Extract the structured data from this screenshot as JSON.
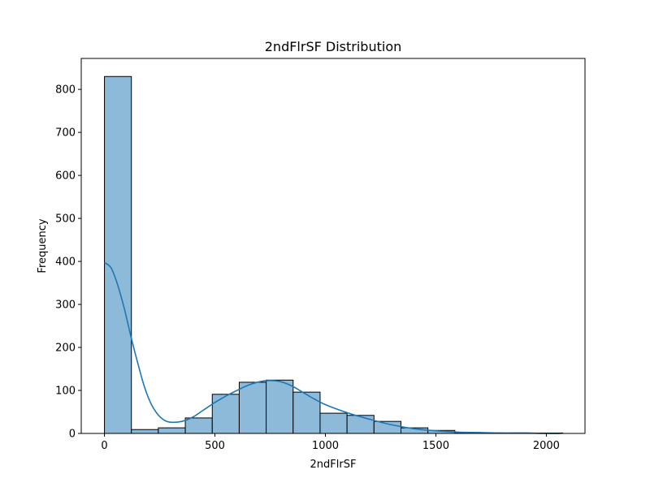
{
  "chart_data": {
    "type": "bar",
    "title": "2ndFlrSF Distribution",
    "xlabel": "2ndFlrSF",
    "ylabel": "Frequency",
    "xlim": [
      -105,
      2175
    ],
    "ylim": [
      0,
      872
    ],
    "x_ticks": [
      0,
      500,
      1000,
      1500,
      2000
    ],
    "y_ticks": [
      0,
      100,
      200,
      300,
      400,
      500,
      600,
      700,
      800
    ],
    "bins": [
      {
        "start": 0,
        "end": 122,
        "count": 830
      },
      {
        "start": 122,
        "end": 244,
        "count": 9
      },
      {
        "start": 244,
        "end": 366,
        "count": 13
      },
      {
        "start": 366,
        "end": 488,
        "count": 36
      },
      {
        "start": 488,
        "end": 610,
        "count": 91
      },
      {
        "start": 610,
        "end": 732,
        "count": 119
      },
      {
        "start": 732,
        "end": 854,
        "count": 124
      },
      {
        "start": 854,
        "end": 976,
        "count": 96
      },
      {
        "start": 976,
        "end": 1098,
        "count": 47
      },
      {
        "start": 1098,
        "end": 1220,
        "count": 42
      },
      {
        "start": 1220,
        "end": 1342,
        "count": 28
      },
      {
        "start": 1342,
        "end": 1464,
        "count": 13
      },
      {
        "start": 1464,
        "end": 1586,
        "count": 7
      },
      {
        "start": 1586,
        "end": 1708,
        "count": 2
      },
      {
        "start": 1708,
        "end": 1830,
        "count": 1
      },
      {
        "start": 1830,
        "end": 1952,
        "count": 1
      },
      {
        "start": 1952,
        "end": 2074,
        "count": 1
      }
    ],
    "kde": {
      "x": [
        0,
        30,
        60,
        90,
        120,
        150,
        180,
        210,
        240,
        270,
        300,
        350,
        400,
        450,
        500,
        550,
        600,
        650,
        700,
        750,
        800,
        850,
        900,
        950,
        1000,
        1100,
        1200,
        1300,
        1400,
        1500,
        1600,
        1700,
        1800,
        1900,
        2000,
        2065
      ],
      "y": [
        397,
        385,
        345,
        290,
        225,
        165,
        110,
        70,
        45,
        31,
        26,
        28,
        38,
        55,
        72,
        87,
        100,
        112,
        120,
        123,
        120,
        110,
        95,
        80,
        67,
        48,
        33,
        20,
        11,
        6,
        3,
        2,
        1,
        1,
        0,
        0
      ]
    },
    "bar_fill": "#8ebad9",
    "bar_edge": "#000000",
    "kde_color": "#1f77b4",
    "grid": false,
    "legend": "none"
  }
}
